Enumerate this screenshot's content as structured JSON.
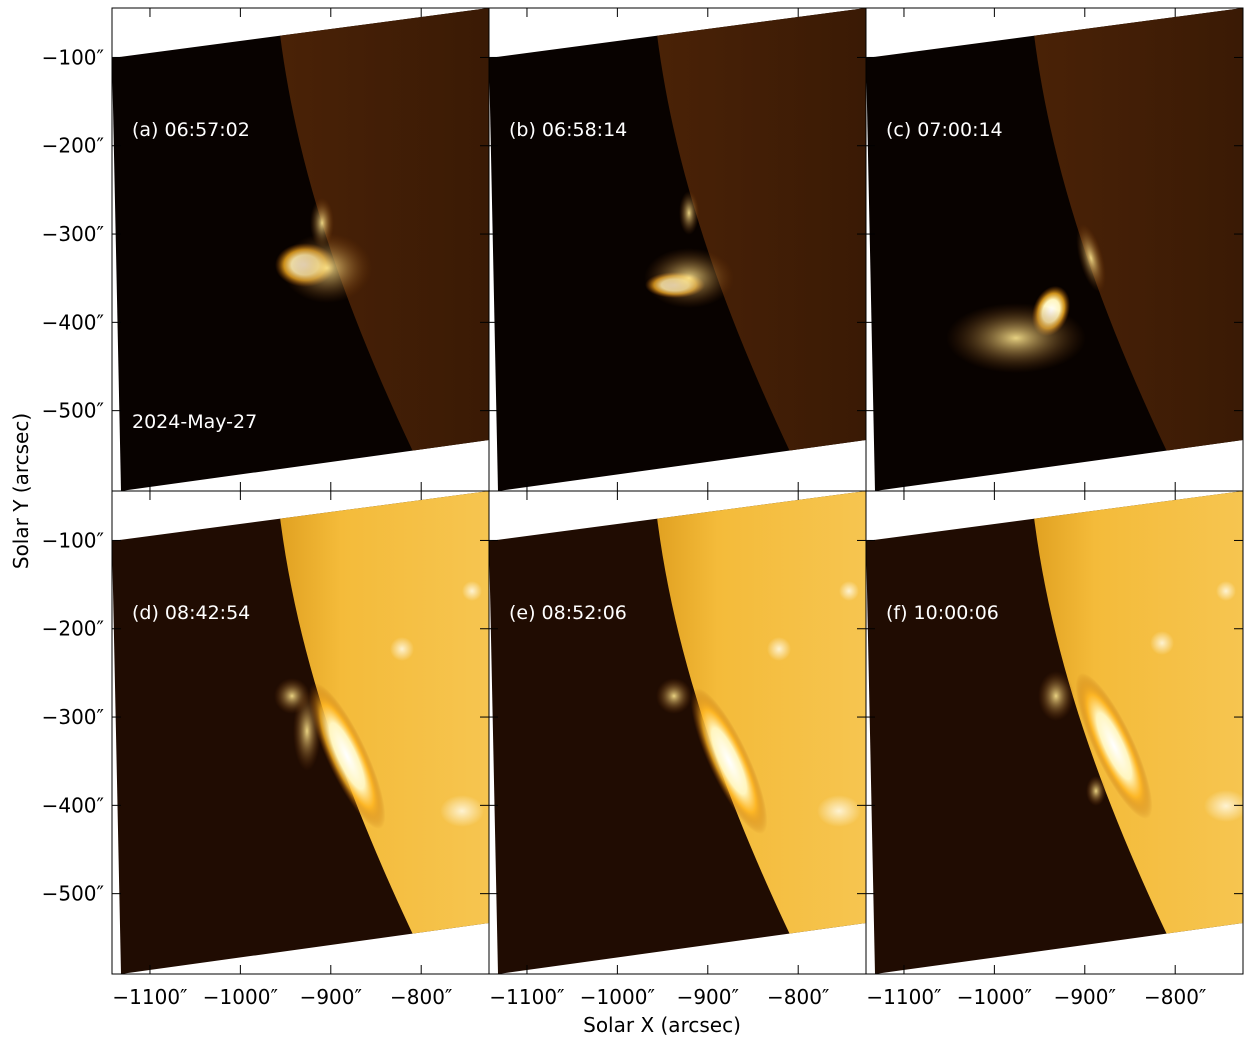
{
  "chart_data": {
    "type": "image",
    "xlabel": "Solar X (arcsec)",
    "ylabel": "Solar Y (arcsec)",
    "xlim": [
      -1142,
      -725
    ],
    "ylim": [
      -591,
      -44
    ],
    "xticks": [
      {
        "value": -1100,
        "label": "−1100″"
      },
      {
        "value": -1000,
        "label": "−1000″"
      },
      {
        "value": -900,
        "label": "−900″"
      },
      {
        "value": -800,
        "label": "−800″"
      }
    ],
    "yticks": [
      {
        "value": -100,
        "label": "−100″"
      },
      {
        "value": -200,
        "label": "−200″"
      },
      {
        "value": -300,
        "label": "−300″"
      },
      {
        "value": -400,
        "label": "−400″"
      },
      {
        "value": -500,
        "label": "−500″"
      }
    ],
    "panels": [
      {
        "label": "(a) 06:57:02",
        "date": "2024-May-27"
      },
      {
        "label": "(b) 06:58:14"
      },
      {
        "label": "(c) 07:00:14"
      },
      {
        "label": "(d) 08:42:54"
      },
      {
        "label": "(e) 08:52:06"
      },
      {
        "label": "(f) 10:00:06"
      }
    ]
  }
}
